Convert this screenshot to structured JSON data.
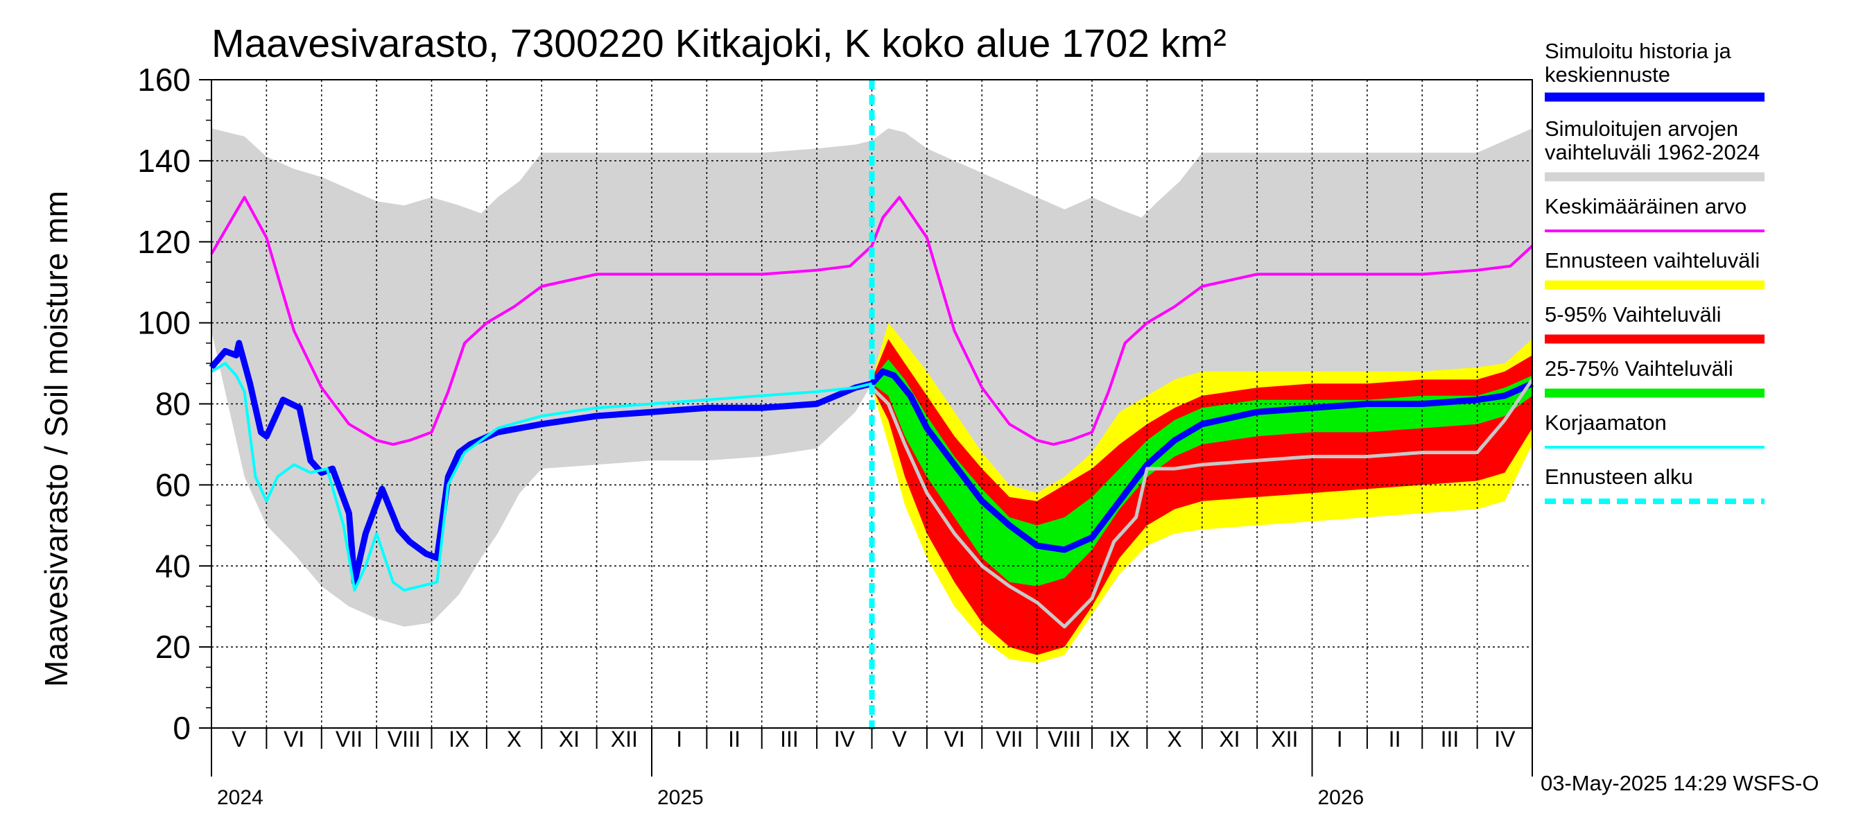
{
  "chart_data": {
    "type": "area",
    "title": "Maavesivarasto, 7300220 Kitkajoki, K koko alue 1702 km²",
    "ylabel": "Maavesivarasto / Soil moisture   mm",
    "ylim": [
      0,
      160
    ],
    "yticks": [
      0,
      20,
      40,
      60,
      80,
      100,
      120,
      140,
      160
    ],
    "x_range_months": [
      0,
      24
    ],
    "forecast_start_month": 12.0,
    "months": [
      {
        "label": "V",
        "start": 0
      },
      {
        "label": "VI",
        "start": 1
      },
      {
        "label": "VII",
        "start": 2
      },
      {
        "label": "VIII",
        "start": 3
      },
      {
        "label": "IX",
        "start": 4
      },
      {
        "label": "X",
        "start": 5
      },
      {
        "label": "XI",
        "start": 6
      },
      {
        "label": "XII",
        "start": 7
      },
      {
        "label": "I",
        "start": 8
      },
      {
        "label": "II",
        "start": 9
      },
      {
        "label": "III",
        "start": 10
      },
      {
        "label": "IV",
        "start": 11
      },
      {
        "label": "V",
        "start": 12
      },
      {
        "label": "VI",
        "start": 13
      },
      {
        "label": "VII",
        "start": 14
      },
      {
        "label": "VIII",
        "start": 15
      },
      {
        "label": "IX",
        "start": 16
      },
      {
        "label": "X",
        "start": 17
      },
      {
        "label": "XI",
        "start": 18
      },
      {
        "label": "XII",
        "start": 19
      },
      {
        "label": "I",
        "start": 20
      },
      {
        "label": "II",
        "start": 21
      },
      {
        "label": "III",
        "start": 22
      },
      {
        "label": "IV",
        "start": 23
      }
    ],
    "years": [
      {
        "label": "2024",
        "at": 0
      },
      {
        "label": "2025",
        "at": 8
      },
      {
        "label": "2026",
        "at": 20
      }
    ],
    "series": [
      {
        "name": "Simuloitujen arvojen vaihteluväli 1962-2024",
        "kind": "band",
        "color": "#d3d3d3",
        "x": [
          0,
          0.3,
          0.6,
          1.0,
          1.5,
          2.0,
          2.5,
          3.0,
          3.5,
          4.0,
          4.5,
          4.9,
          5.2,
          5.6,
          6.0,
          7.0,
          8.0,
          9.0,
          10.0,
          11.0,
          11.7,
          12.0,
          12.3,
          12.6,
          13.0,
          13.5,
          14.0,
          14.5,
          15.0,
          15.5,
          16.0,
          16.5,
          16.9,
          17.2,
          17.6,
          18.0,
          19.0,
          20.0,
          21.0,
          22.0,
          23.0,
          23.5,
          24.0
        ],
        "upper": [
          148,
          147,
          146,
          141,
          138,
          136,
          133,
          130,
          129,
          131,
          129,
          127,
          131,
          135,
          142,
          142,
          142,
          142,
          142,
          143,
          144,
          145,
          148,
          147,
          143,
          140,
          137,
          134,
          131,
          128,
          131,
          128,
          126,
          130,
          135,
          142,
          142,
          142,
          142,
          142,
          142,
          145,
          148
        ],
        "lower": [
          98,
          80,
          62,
          50,
          43,
          35,
          30,
          27,
          25,
          26,
          33,
          42,
          48,
          58,
          64,
          65,
          66,
          66,
          67,
          69,
          78,
          85,
          96,
          92,
          80,
          65,
          48,
          38,
          32,
          28,
          30,
          38,
          45,
          52,
          58,
          62,
          63,
          64,
          65,
          66,
          67,
          72,
          82
        ]
      },
      {
        "name": "Ennusteen vaihteluväli",
        "kind": "band",
        "color": "#ffff00",
        "x": [
          12.0,
          12.3,
          12.6,
          13.0,
          13.5,
          14.0,
          14.5,
          15.0,
          15.5,
          16.0,
          16.5,
          17.0,
          17.5,
          18.0,
          19.0,
          20.0,
          21.0,
          22.0,
          23.0,
          23.5,
          24.0
        ],
        "upper": [
          86,
          100,
          95,
          88,
          78,
          68,
          60,
          58,
          62,
          68,
          78,
          82,
          86,
          88,
          88,
          88,
          88,
          88,
          89,
          90,
          96
        ],
        "lower": [
          84,
          70,
          55,
          42,
          30,
          22,
          17,
          16,
          18,
          28,
          38,
          45,
          48,
          49,
          50,
          51,
          52,
          53,
          54,
          56,
          70
        ]
      },
      {
        "name": "5-95% Vaihteluväli",
        "kind": "band",
        "color": "#ff0000",
        "x": [
          12.0,
          12.3,
          12.6,
          13.0,
          13.5,
          14.0,
          14.5,
          15.0,
          15.5,
          16.0,
          16.5,
          17.0,
          17.5,
          18.0,
          19.0,
          20.0,
          21.0,
          22.0,
          23.0,
          23.5,
          24.0
        ],
        "upper": [
          86,
          96,
          90,
          82,
          72,
          64,
          57,
          56,
          60,
          64,
          70,
          75,
          79,
          82,
          84,
          85,
          85,
          86,
          86,
          88,
          92
        ],
        "lower": [
          84,
          76,
          62,
          48,
          36,
          26,
          20,
          18,
          20,
          30,
          42,
          50,
          54,
          56,
          57,
          58,
          59,
          60,
          61,
          63,
          74
        ]
      },
      {
        "name": "25-75% Vaihteluväli",
        "kind": "band",
        "color": "#00ee00",
        "x": [
          12.0,
          12.3,
          12.6,
          13.0,
          13.5,
          14.0,
          14.5,
          15.0,
          15.5,
          16.0,
          16.5,
          17.0,
          17.5,
          18.0,
          19.0,
          20.0,
          21.0,
          22.0,
          23.0,
          23.5,
          24.0
        ],
        "upper": [
          86,
          91,
          86,
          77,
          67,
          59,
          52,
          50,
          52,
          57,
          64,
          71,
          76,
          79,
          81,
          81,
          81,
          82,
          82,
          84,
          87
        ],
        "lower": [
          85,
          82,
          72,
          62,
          52,
          42,
          36,
          35,
          37,
          44,
          54,
          62,
          67,
          70,
          72,
          73,
          73,
          74,
          75,
          77,
          82
        ]
      },
      {
        "name": "Simuloitu historia ja keskiennuste",
        "kind": "line",
        "color": "#0000ff",
        "x": [
          0,
          0.25,
          0.45,
          0.5,
          0.7,
          0.9,
          1.0,
          1.3,
          1.6,
          1.8,
          2.0,
          2.2,
          2.5,
          2.6,
          2.8,
          3.1,
          3.4,
          3.6,
          3.9,
          4.1,
          4.3,
          4.5,
          4.7,
          5.2,
          6.0,
          7.0,
          8.0,
          9.0,
          10.0,
          11.0,
          11.7,
          12.0,
          12.2,
          12.4,
          12.7,
          13.0,
          13.5,
          14.0,
          14.5,
          15.0,
          15.5,
          16.0,
          16.5,
          17.0,
          17.5,
          18.0,
          19.0,
          20.0,
          21.0,
          22.0,
          23.0,
          23.5,
          24.0
        ],
        "y": [
          89,
          93,
          92,
          95,
          85,
          73,
          72,
          81,
          79,
          66,
          63,
          64,
          53,
          36,
          48,
          59,
          49,
          46,
          43,
          42,
          62,
          68,
          70,
          73,
          75,
          77,
          78,
          79,
          79,
          80,
          84,
          85,
          88,
          87,
          82,
          74,
          65,
          56,
          50,
          45,
          44,
          47,
          56,
          65,
          71,
          75,
          78,
          79,
          80,
          80,
          81,
          82,
          85
        ]
      },
      {
        "name": "Korjaamaton",
        "kind": "line",
        "color": "#00ffff",
        "x": [
          0,
          0.25,
          0.45,
          0.6,
          0.8,
          1.0,
          1.2,
          1.5,
          1.8,
          2.1,
          2.4,
          2.6,
          2.8,
          3.0,
          3.3,
          3.5,
          3.8,
          4.1,
          4.3,
          4.6,
          5.2,
          6.0,
          7.0,
          8.0,
          9.0,
          10.0,
          11.0,
          11.7,
          12.0
        ],
        "y": [
          88,
          90,
          87,
          83,
          62,
          56,
          62,
          65,
          63,
          64,
          50,
          34,
          40,
          48,
          36,
          34,
          35,
          36,
          60,
          68,
          74,
          77,
          79,
          80,
          81,
          82,
          83,
          84,
          85
        ]
      },
      {
        "name": "Forecast history (grey)",
        "kind": "line",
        "color": "#c8c8c8",
        "x": [
          12.0,
          12.3,
          12.6,
          13.0,
          13.5,
          14.0,
          14.5,
          15.0,
          15.5,
          16.0,
          16.4,
          16.8,
          17.0,
          17.5,
          18.0,
          19.0,
          20.0,
          21.0,
          22.0,
          23.0,
          23.5,
          24.0
        ],
        "y": [
          84,
          80,
          70,
          58,
          48,
          40,
          35,
          31,
          25,
          32,
          46,
          52,
          64,
          64,
          65,
          66,
          67,
          67,
          68,
          68,
          76,
          86
        ]
      },
      {
        "name": "Keskimääräinen arvo",
        "kind": "line",
        "color": "#ff00ff",
        "x": [
          0,
          0.3,
          0.6,
          1.0,
          1.5,
          2.0,
          2.5,
          3.0,
          3.3,
          3.6,
          4.0,
          4.3,
          4.6,
          5.0,
          5.5,
          6.0,
          7.0,
          8.0,
          9.0,
          10.0,
          11.0,
          11.6,
          12.0,
          12.2,
          12.5,
          13.0,
          13.5,
          14.0,
          14.5,
          15.0,
          15.3,
          15.6,
          16.0,
          16.3,
          16.6,
          17.0,
          17.5,
          18.0,
          19.0,
          20.0,
          21.0,
          22.0,
          23.0,
          23.6,
          24.0
        ],
        "y": [
          117,
          124,
          131,
          121,
          98,
          84,
          75,
          71,
          70,
          71,
          73,
          83,
          95,
          100,
          104,
          109,
          112,
          112,
          112,
          112,
          113,
          114,
          119,
          126,
          131,
          121,
          98,
          84,
          75,
          71,
          70,
          71,
          73,
          83,
          95,
          100,
          104,
          109,
          112,
          112,
          112,
          112,
          113,
          114,
          119
        ]
      }
    ],
    "legend": [
      {
        "label": "Simuloitu historia ja keskiennuste",
        "color": "#0000ff"
      },
      {
        "label": "Simuloitujen arvojen vaihteluväli 1962-2024",
        "color": "#d3d3d3"
      },
      {
        "label": "Keskimääräinen arvo",
        "color": "#ff00ff"
      },
      {
        "label": "Ennusteen vaihteluväli",
        "color": "#ffff00"
      },
      {
        "label": "5-95% Vaihteluväli",
        "color": "#ff0000"
      },
      {
        "label": "25-75% Vaihteluväli",
        "color": "#00ee00"
      },
      {
        "label": "Korjaamaton",
        "color": "#00ffff"
      },
      {
        "label": "Ennusteen alku",
        "color": "#00ffff"
      }
    ],
    "legend_position": "right",
    "grid": true
  },
  "legend_lines": {
    "sim_history_1": "Simuloitu historia ja",
    "sim_history_2": "keskiennuste",
    "sim_range_1": "Simuloitujen arvojen",
    "sim_range_2": "vaihteluväli 1962-2024",
    "mean": "Keskimääräinen arvo",
    "forecast_range": "Ennusteen vaihteluväli",
    "range_5_95": "5-95% Vaihteluväli",
    "range_25_75": "25-75% Vaihteluväli",
    "uncorrected": "Korjaamaton",
    "forecast_start": "Ennusteen alku"
  },
  "footer": "03-May-2025 14:29 WSFS-O"
}
